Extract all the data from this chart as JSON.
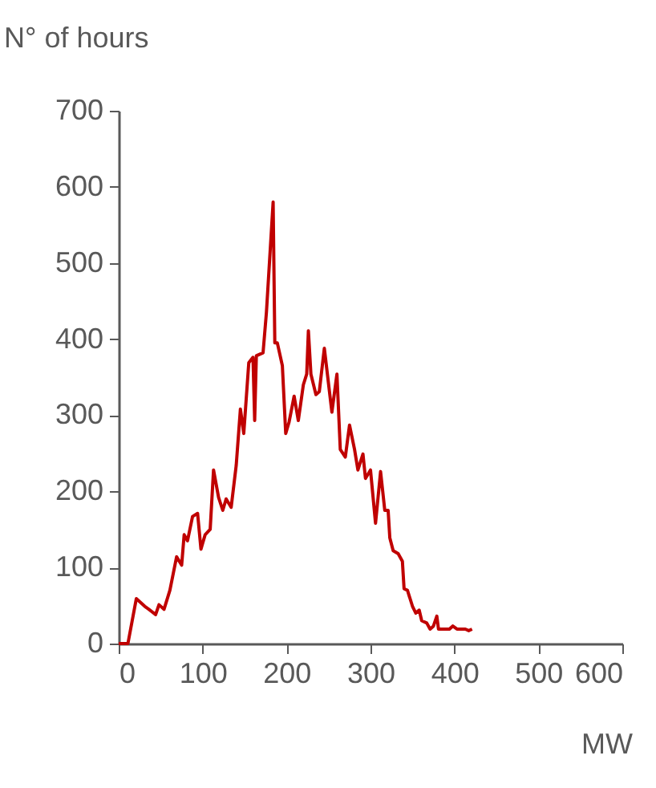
{
  "chart_data": {
    "type": "line",
    "xlabel": "MW",
    "ylabel": "N° of hours",
    "x": [
      0,
      11,
      21,
      31,
      36,
      44,
      48,
      54,
      61,
      69,
      75,
      78,
      82,
      88,
      94,
      98,
      103,
      109,
      113,
      119,
      124,
      128,
      134,
      140,
      145,
      149,
      155,
      160,
      162,
      164,
      172,
      176,
      184,
      186,
      189,
      195,
      199,
      203,
      209,
      214,
      220,
      224,
      226,
      229,
      235,
      239,
      245,
      254,
      260,
      264,
      270,
      275,
      281,
      285,
      291,
      294,
      300,
      306,
      312,
      317,
      321,
      323,
      327,
      333,
      338,
      340,
      344,
      350,
      354,
      358,
      361,
      367,
      371,
      375,
      379,
      381,
      394,
      398,
      403,
      413,
      417,
      421
    ],
    "series": [
      {
        "color": "#c00000",
        "values": [
          0,
          0,
          59,
          49,
          45,
          38,
          51,
          45,
          70,
          114,
          103,
          143,
          135,
          167,
          171,
          124,
          143,
          150,
          228,
          192,
          175,
          190,
          179,
          234,
          308,
          276,
          369,
          376,
          293,
          378,
          382,
          435,
          580,
          395,
          395,
          365,
          276,
          291,
          325,
          293,
          340,
          354,
          411,
          354,
          327,
          331,
          388,
          304,
          354,
          255,
          245,
          287,
          255,
          228,
          249,
          217,
          228,
          158,
          226,
          175,
          175,
          139,
          122,
          118,
          108,
          72,
          70,
          49,
          40,
          44,
          30,
          27,
          19,
          23,
          36,
          19,
          19,
          23,
          19,
          19,
          17,
          19
        ]
      }
    ],
    "xlim": [
      0,
      600
    ],
    "xticks": [
      0,
      100,
      200,
      300,
      400,
      500,
      600
    ],
    "ylim": [
      0,
      700
    ],
    "yticks": [
      0,
      100,
      200,
      300,
      400,
      500,
      600,
      700
    ],
    "grid": false,
    "marker": "none",
    "line_style": "solid"
  }
}
